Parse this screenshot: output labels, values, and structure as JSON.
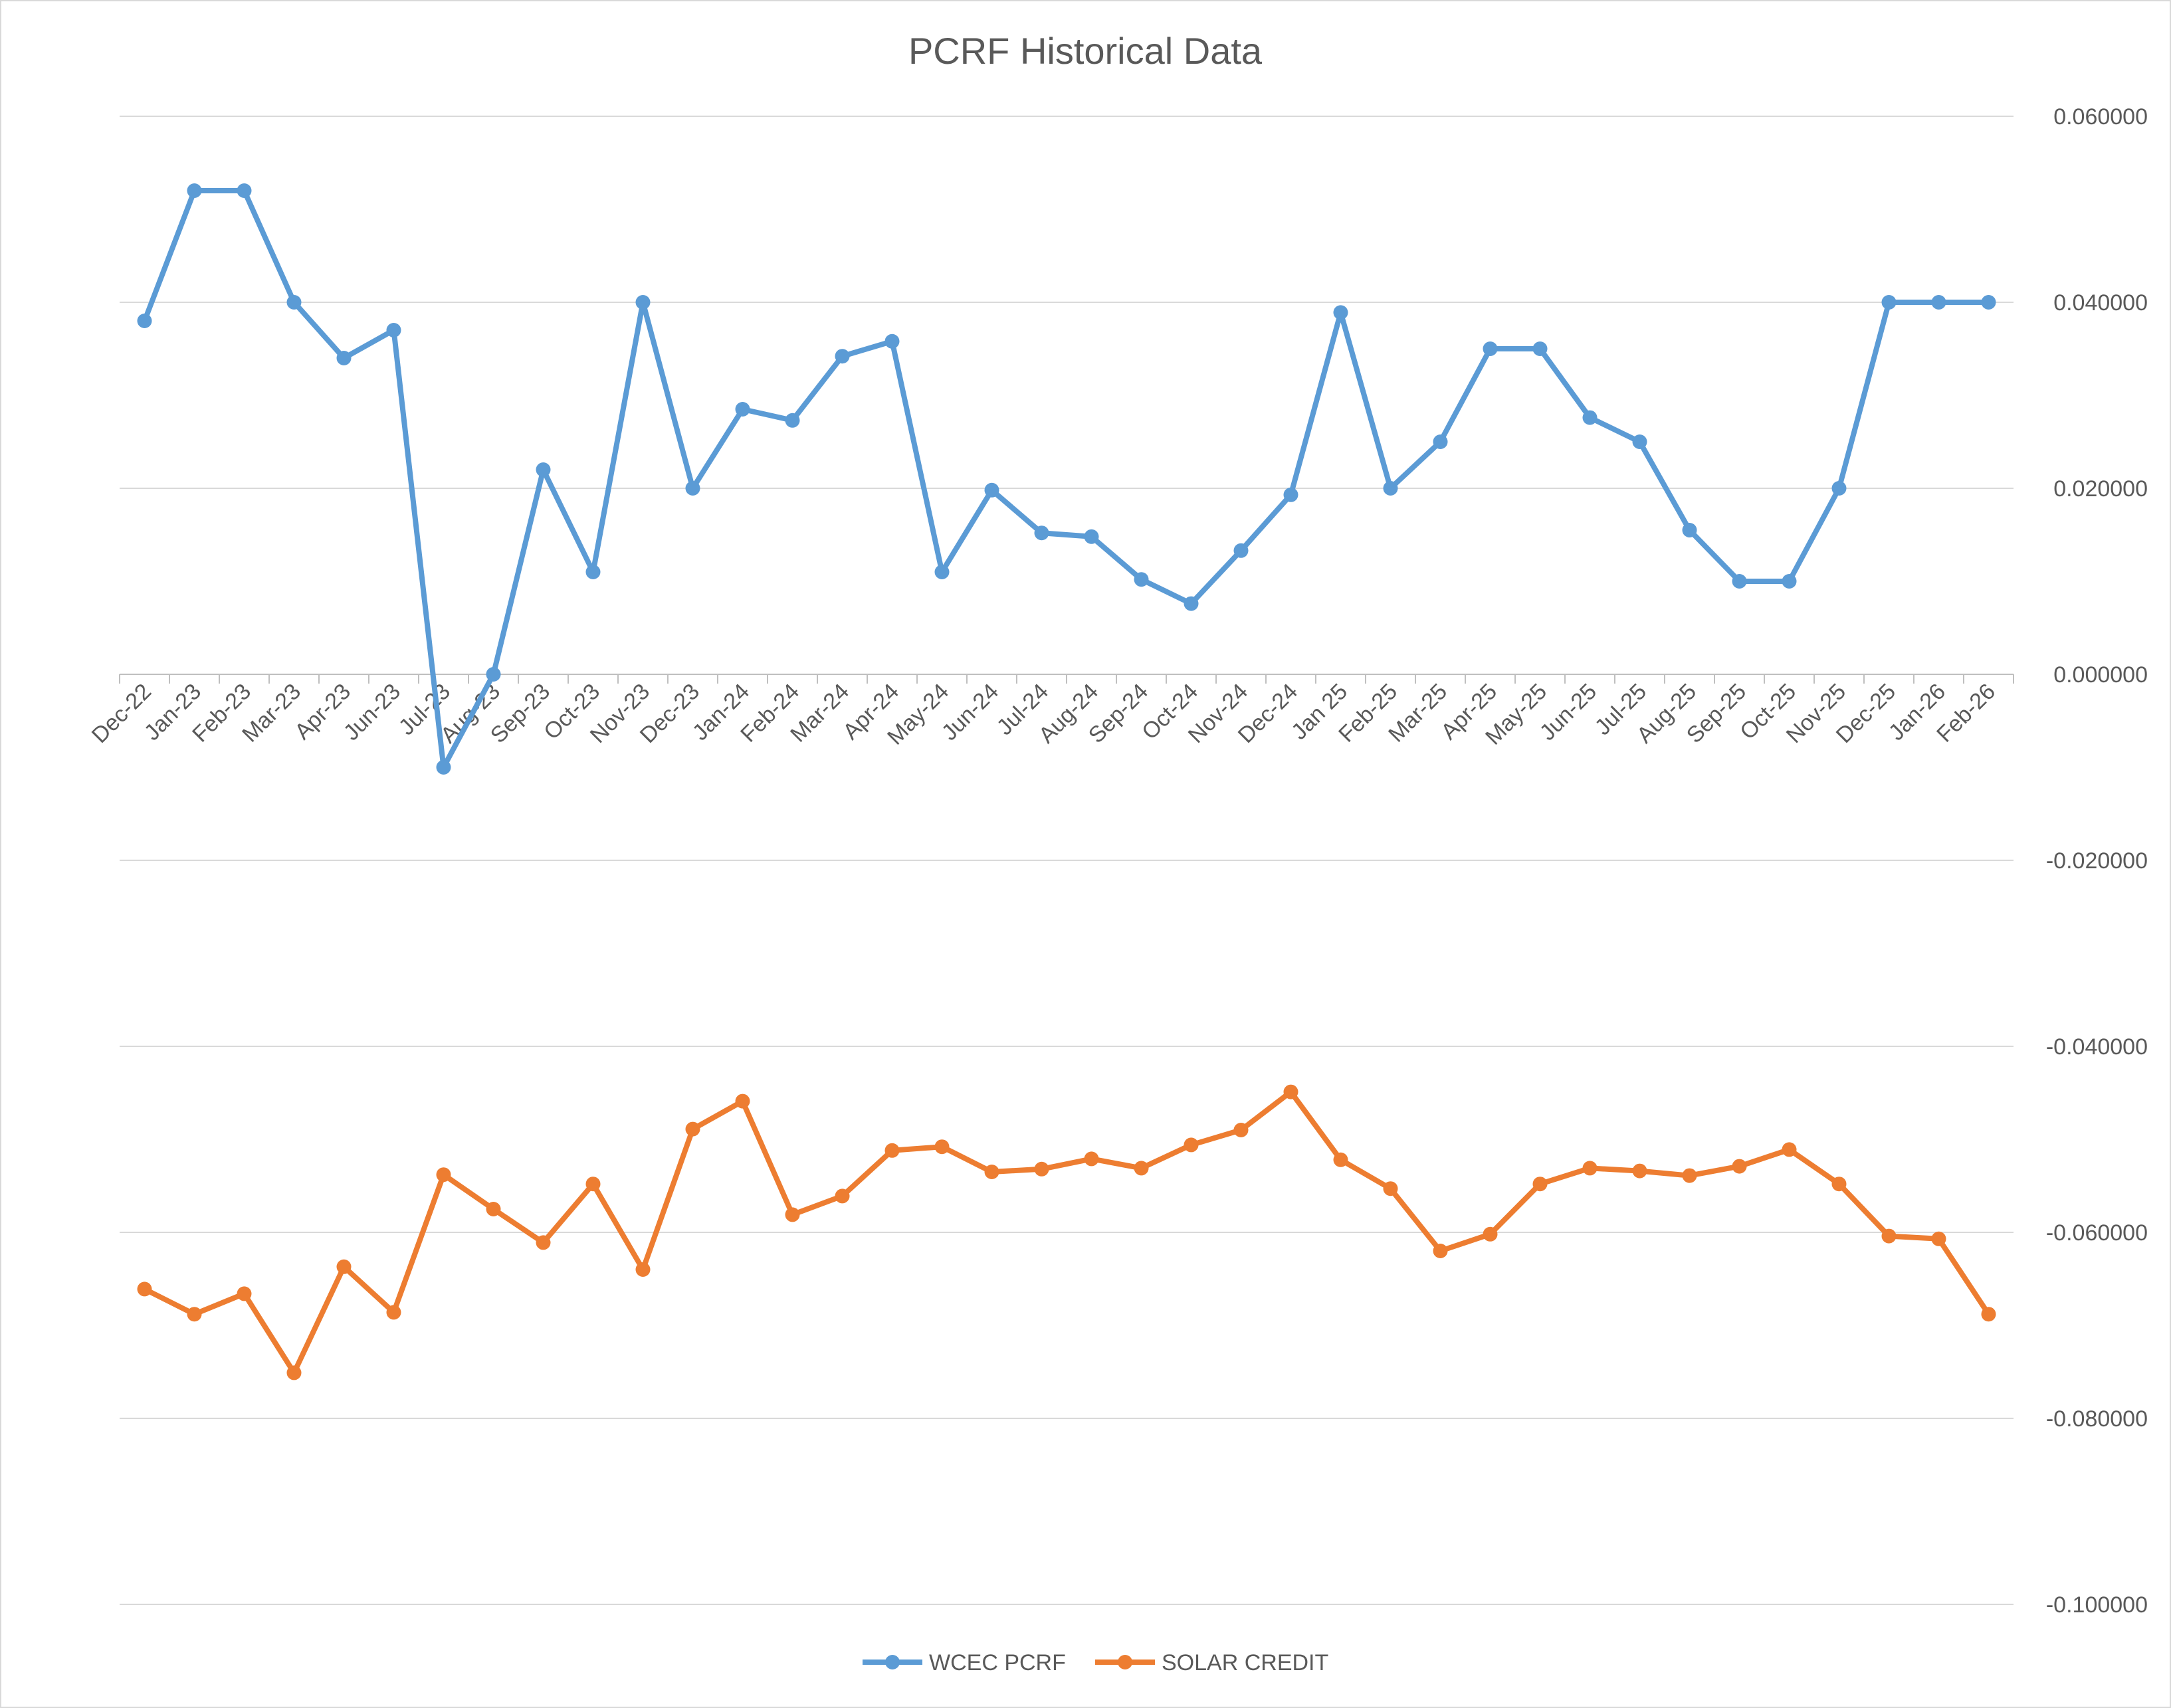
{
  "chart_data": {
    "type": "line",
    "title": "PCRF Historical Data",
    "xlabel": "",
    "ylabel": "",
    "ylim": [
      -0.1,
      0.06
    ],
    "y_ticks": [
      "0.060000",
      "0.040000",
      "0.020000",
      "0.000000",
      "-0.020000",
      "-0.040000",
      "-0.060000",
      "-0.080000",
      "-0.100000"
    ],
    "y_axis_side": "right",
    "grid": true,
    "legend_position": "bottom",
    "categories": [
      "Dec-22",
      "Jan-23",
      "Feb-23",
      "Mar-23",
      "Apr-23",
      "Jun-23",
      "Jul-23",
      "Aug-23",
      "Sep-23",
      "Oct-23",
      "Nov-23",
      "Dec-23",
      "Jan-24",
      "Feb-24",
      "Mar-24",
      "Apr-24",
      "May-24",
      "Jun-24",
      "Jul-24",
      "Aug-24",
      "Sep-24",
      "Oct-24",
      "Nov-24",
      "Dec-24",
      "Jan 25",
      "Feb-25",
      "Mar-25",
      "Apr-25",
      "May-25",
      "Jun-25",
      "Jul-25",
      "Aug-25",
      "Sep-25",
      "Oct-25",
      "Nov-25",
      "Dec-25",
      "Jan-26",
      "Feb-26"
    ],
    "series": [
      {
        "name": "WCEC PCRF",
        "color": "#5b9bd5",
        "values": [
          0.038,
          0.052,
          0.052,
          0.04,
          0.034,
          0.037,
          -0.01,
          0.0,
          0.022,
          0.011,
          0.04,
          0.02,
          0.0285,
          0.0273,
          0.0342,
          0.0358,
          0.011,
          0.0198,
          0.0152,
          0.0148,
          0.0102,
          0.0076,
          0.0133,
          0.0193,
          0.0389,
          0.02,
          0.025,
          0.035,
          0.035,
          0.0276,
          0.025,
          0.0155,
          0.01,
          0.01,
          0.02,
          0.04,
          0.04,
          0.04
        ]
      },
      {
        "name": "SOLAR CREDIT",
        "color": "#ed7d31",
        "values": [
          -0.0661,
          -0.0688,
          -0.0666,
          -0.0751,
          -0.0637,
          -0.0686,
          -0.0538,
          -0.0575,
          -0.0611,
          -0.0548,
          -0.064,
          -0.0489,
          -0.0459,
          -0.0581,
          -0.0561,
          -0.0512,
          -0.0508,
          -0.0535,
          -0.0532,
          -0.0521,
          -0.0531,
          -0.0506,
          -0.049,
          -0.0449,
          -0.0522,
          -0.0553,
          -0.062,
          -0.0602,
          -0.0548,
          -0.0531,
          -0.0534,
          -0.0539,
          -0.0529,
          -0.0511,
          -0.0548,
          -0.0604,
          -0.0607,
          -0.0688
        ]
      }
    ]
  }
}
